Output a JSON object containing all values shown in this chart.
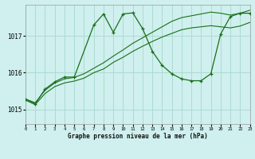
{
  "title": "Graphe pression niveau de la mer (hPa)",
  "bg": "#cff0ee",
  "grid_color": "#a8d8cc",
  "lc": "#1a6e1a",
  "xlim": [
    0,
    23
  ],
  "ylim": [
    1014.6,
    1017.85
  ],
  "yticks": [
    1015,
    1016,
    1017
  ],
  "xticks": [
    0,
    1,
    2,
    3,
    4,
    5,
    6,
    7,
    8,
    9,
    10,
    11,
    12,
    13,
    14,
    15,
    16,
    17,
    18,
    19,
    20,
    21,
    22,
    23
  ],
  "curve_main_x": [
    0,
    1,
    2,
    3,
    4,
    5,
    7,
    8,
    9,
    10,
    11,
    12,
    13,
    14,
    15,
    16,
    17,
    18,
    19,
    20,
    21,
    22,
    23
  ],
  "curve_main_y": [
    1015.28,
    1015.15,
    1015.55,
    1015.75,
    1015.88,
    1015.88,
    1017.3,
    1017.6,
    1017.1,
    1017.6,
    1017.63,
    1017.2,
    1016.58,
    1016.2,
    1015.97,
    1015.83,
    1015.78,
    1015.78,
    1015.97,
    1017.05,
    1017.53,
    1017.62,
    1017.62
  ],
  "curve_hi_x": [
    0,
    1,
    2,
    3,
    4,
    5,
    6,
    7,
    8,
    9,
    10,
    11,
    12,
    13,
    14,
    15,
    16,
    17,
    18,
    19,
    20,
    21,
    22,
    23
  ],
  "curve_hi_y": [
    1015.28,
    1015.18,
    1015.52,
    1015.72,
    1015.83,
    1015.87,
    1015.97,
    1016.12,
    1016.27,
    1016.45,
    1016.62,
    1016.8,
    1016.95,
    1017.1,
    1017.25,
    1017.4,
    1017.5,
    1017.55,
    1017.6,
    1017.65,
    1017.62,
    1017.57,
    1017.62,
    1017.7
  ],
  "curve_lo_x": [
    0,
    1,
    2,
    3,
    4,
    5,
    6,
    7,
    8,
    9,
    10,
    11,
    12,
    13,
    14,
    15,
    16,
    17,
    18,
    19,
    20,
    21,
    22,
    23
  ],
  "curve_lo_y": [
    1015.25,
    1015.13,
    1015.43,
    1015.62,
    1015.72,
    1015.77,
    1015.85,
    1016.0,
    1016.1,
    1016.28,
    1016.42,
    1016.58,
    1016.72,
    1016.85,
    1016.97,
    1017.07,
    1017.17,
    1017.22,
    1017.25,
    1017.28,
    1017.25,
    1017.22,
    1017.27,
    1017.37
  ]
}
